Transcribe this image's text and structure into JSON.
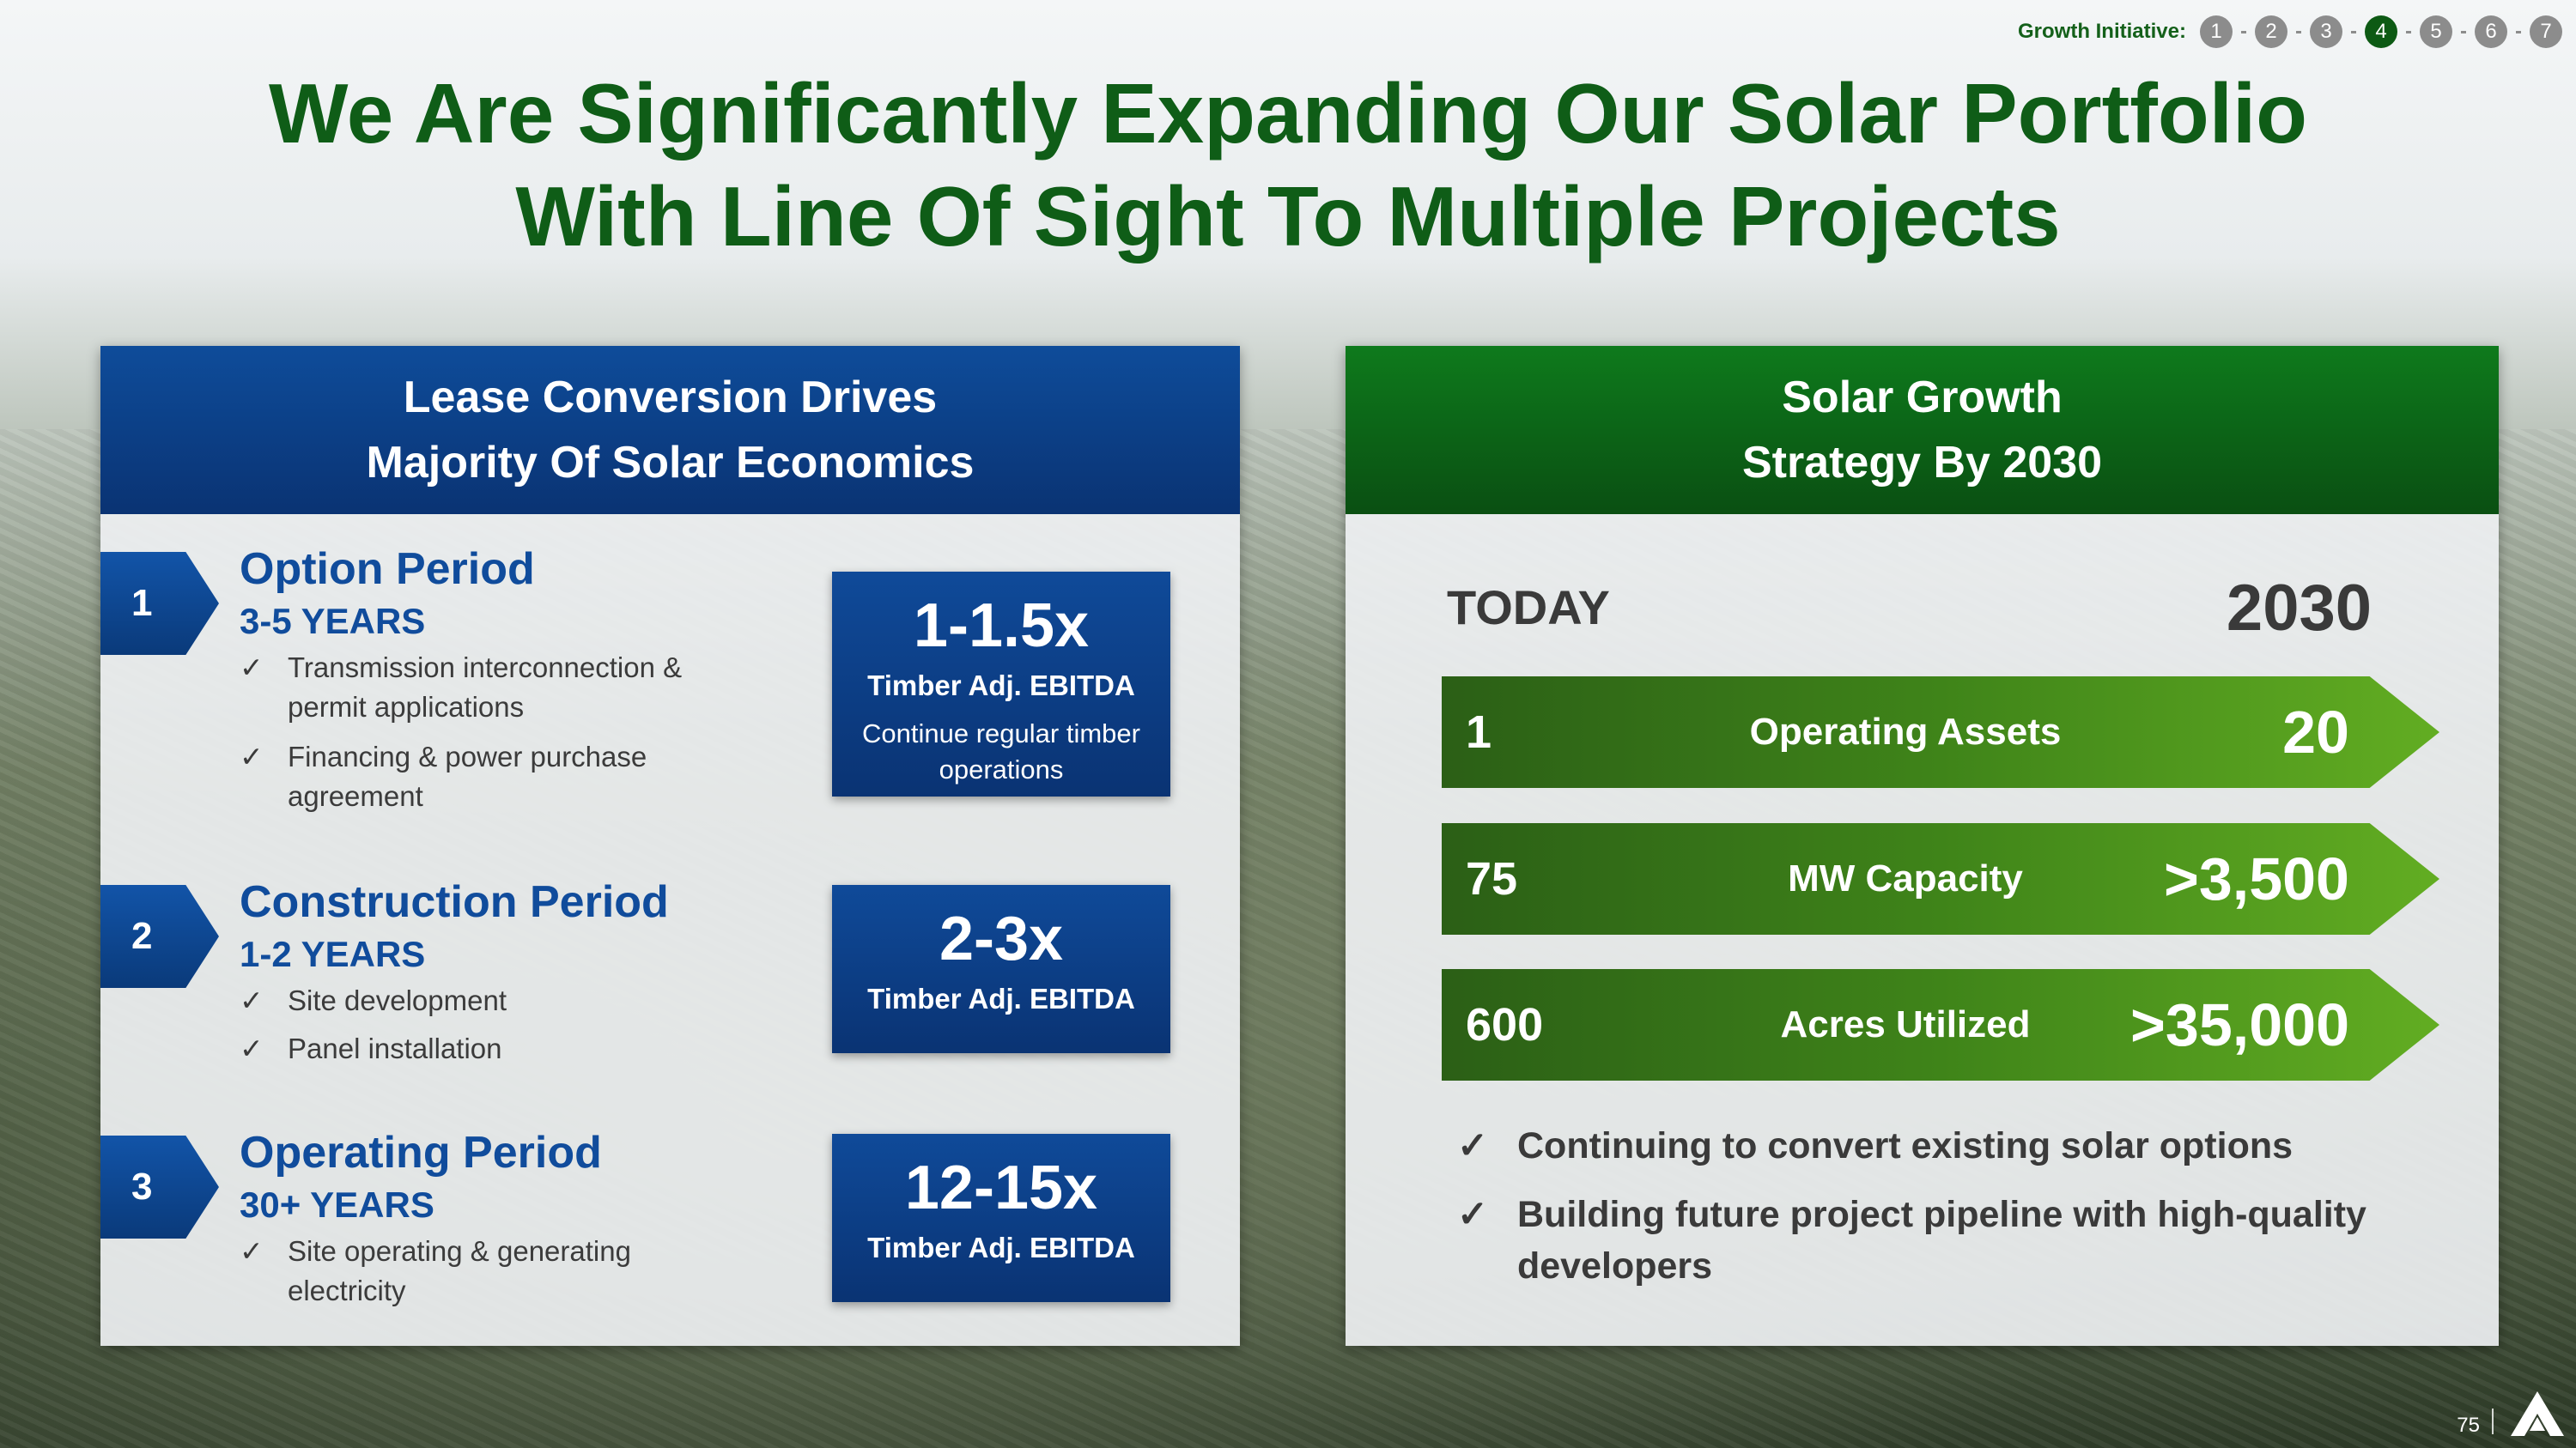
{
  "growth_initiative": {
    "label": "Growth Initiative:",
    "steps": [
      "1",
      "2",
      "3",
      "4",
      "5",
      "6",
      "7"
    ],
    "active_step": "4"
  },
  "title": {
    "line1": "We Are Significantly Expanding Our Solar Portfolio",
    "line2": "With Line Of Sight To Multiple Projects"
  },
  "left_panel": {
    "header_line1": "Lease Conversion Drives",
    "header_line2": "Majority Of Solar Economics",
    "steps": [
      {
        "number": "1",
        "title": "Option Period",
        "years": "3-5 YEARS",
        "checks": [
          "Transmission interconnection & permit applications",
          "Financing & power purchase agreement"
        ],
        "multiple": "1-1.5x",
        "multiple_label": "Timber Adj. EBITDA",
        "note": "Continue regular timber operations"
      },
      {
        "number": "2",
        "title": "Construction Period",
        "years": "1-2 YEARS",
        "checks": [
          "Site development",
          "Panel installation"
        ],
        "multiple": "2-3x",
        "multiple_label": "Timber Adj. EBITDA"
      },
      {
        "number": "3",
        "title": "Operating Period",
        "years": "30+ YEARS",
        "checks": [
          "Site operating & generating electricity"
        ],
        "multiple": "12-15x",
        "multiple_label": "Timber Adj. EBITDA"
      }
    ]
  },
  "right_panel": {
    "header_line1": "Solar Growth",
    "header_line2": "Strategy By 2030",
    "col_today": "TODAY",
    "col_2030": "2030",
    "rows": [
      {
        "today": "1",
        "label": "Operating Assets",
        "target": "20"
      },
      {
        "today": "75",
        "label": "MW Capacity",
        "target": ">3,500"
      },
      {
        "today": "600",
        "label": "Acres Utilized",
        "target": ">35,000"
      }
    ],
    "checks": [
      "Continuing to convert existing solar options",
      "Building future project pipeline with high-quality developers"
    ]
  },
  "check_mark": "✓",
  "page_number": "75",
  "colors": {
    "title_green": "#0f5d17",
    "blue": "#0a3373",
    "green": "#0a4f12"
  }
}
